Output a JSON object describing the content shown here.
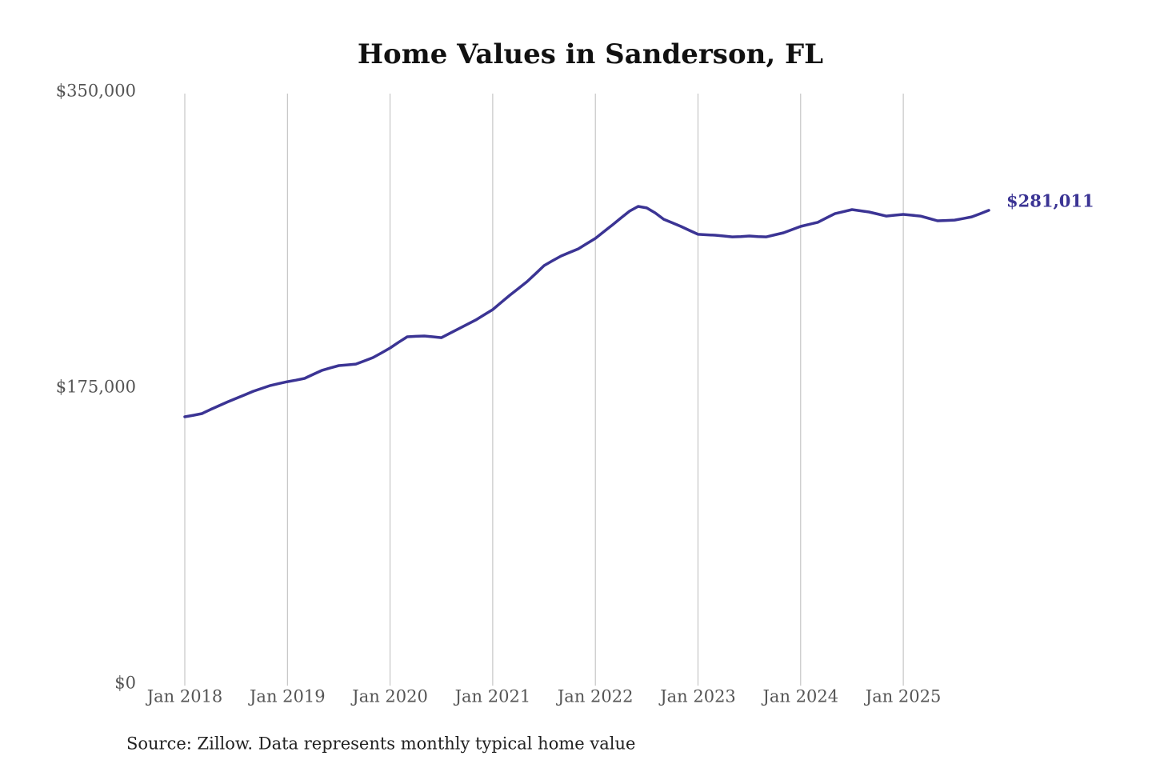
{
  "chart_data": {
    "type": "line",
    "title": "Home Values in Sanderson, FL",
    "source": "Source: Zillow. Data represents monthly typical home value",
    "x": [
      "2018-01",
      "2018-02",
      "2018-03",
      "2018-04",
      "2018-05",
      "2018-06",
      "2018-07",
      "2018-08",
      "2018-09",
      "2018-10",
      "2018-11",
      "2018-12",
      "2019-01",
      "2019-02",
      "2019-03",
      "2019-04",
      "2019-05",
      "2019-06",
      "2019-07",
      "2019-08",
      "2019-09",
      "2019-10",
      "2019-11",
      "2019-12",
      "2020-01",
      "2020-02",
      "2020-03",
      "2020-04",
      "2020-05",
      "2020-06",
      "2020-07",
      "2020-08",
      "2020-09",
      "2020-10",
      "2020-11",
      "2020-12",
      "2021-01",
      "2021-02",
      "2021-03",
      "2021-04",
      "2021-05",
      "2021-06",
      "2021-07",
      "2021-08",
      "2021-09",
      "2021-10",
      "2021-11",
      "2021-12",
      "2022-01",
      "2022-02",
      "2022-03",
      "2022-04",
      "2022-05",
      "2022-06",
      "2022-07",
      "2022-08",
      "2022-09",
      "2022-10",
      "2022-11",
      "2022-12",
      "2023-01",
      "2023-02",
      "2023-03",
      "2023-04",
      "2023-05",
      "2023-06",
      "2023-07",
      "2023-08",
      "2023-09",
      "2023-10",
      "2023-11",
      "2023-12",
      "2024-01",
      "2024-02",
      "2024-03",
      "2024-04",
      "2024-05",
      "2024-06",
      "2024-07",
      "2024-08",
      "2024-09",
      "2024-10",
      "2024-11",
      "2024-12",
      "2025-01",
      "2025-02",
      "2025-03",
      "2025-04",
      "2025-05",
      "2025-06",
      "2025-07",
      "2025-08",
      "2025-09",
      "2025-10",
      "2025-11"
    ],
    "values": [
      158900,
      159800,
      160800,
      163200,
      165500,
      167700,
      169800,
      171900,
      174000,
      175700,
      177400,
      178600,
      179700,
      180600,
      181600,
      184000,
      186300,
      187800,
      189200,
      189600,
      190100,
      192000,
      193900,
      196700,
      199600,
      203000,
      206200,
      206500,
      206700,
      206200,
      205700,
      208300,
      210900,
      213500,
      216100,
      219200,
      222300,
      226600,
      230800,
      234800,
      238800,
      243500,
      248300,
      251200,
      254000,
      256100,
      258200,
      261300,
      264400,
      268400,
      272400,
      276500,
      280500,
      283300,
      282400,
      279500,
      275700,
      273600,
      271500,
      269100,
      266800,
      266500,
      266300,
      265800,
      265300,
      265500,
      265800,
      265500,
      265300,
      266500,
      267700,
      269600,
      271500,
      272700,
      273900,
      276500,
      279000,
      280200,
      281400,
      280700,
      280000,
      278800,
      277600,
      278100,
      278600,
      278100,
      277600,
      276200,
      274800,
      275000,
      275200,
      276100,
      277100,
      279000,
      281011
    ],
    "value_labels": [
      null,
      null,
      null,
      null,
      null,
      null,
      null,
      null,
      null,
      null,
      null,
      null,
      null,
      null,
      null,
      null,
      null,
      null,
      null,
      null,
      null,
      null,
      null,
      null,
      null,
      null,
      null,
      null,
      null,
      null,
      null,
      null,
      null,
      null,
      null,
      null,
      null,
      null,
      null,
      null,
      null,
      null,
      null,
      null,
      null,
      null,
      null,
      null,
      null,
      null,
      null,
      null,
      null,
      null,
      null,
      null,
      null,
      null,
      null,
      null,
      null,
      null,
      null,
      null,
      null,
      null,
      null,
      null,
      null,
      null,
      null,
      null,
      null,
      null,
      null,
      null,
      null,
      null,
      null,
      null,
      null,
      null,
      null,
      null,
      null,
      null,
      null,
      null,
      null,
      null,
      null,
      null,
      null,
      null,
      "$281,011"
    ],
    "color": "#3b3494",
    "ylim": [
      0,
      350000
    ],
    "yticks": [
      {
        "value": 0,
        "label": "$0"
      },
      {
        "value": 175000,
        "label": "$175,000"
      },
      {
        "value": 350000,
        "label": "$350,000"
      }
    ],
    "xticks": [
      {
        "value": "2018-01",
        "label": "Jan 2018"
      },
      {
        "value": "2019-01",
        "label": "Jan 2019"
      },
      {
        "value": "2020-01",
        "label": "Jan 2020"
      },
      {
        "value": "2021-01",
        "label": "Jan 2021"
      },
      {
        "value": "2022-01",
        "label": "Jan 2022"
      },
      {
        "value": "2023-01",
        "label": "Jan 2023"
      },
      {
        "value": "2024-01",
        "label": "Jan 2024"
      },
      {
        "value": "2025-01",
        "label": "Jan 2025"
      }
    ],
    "grid": "x"
  }
}
